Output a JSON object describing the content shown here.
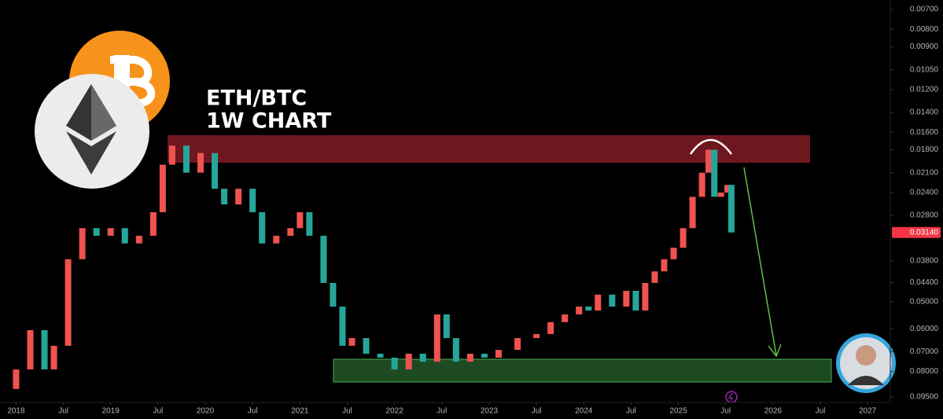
{
  "chart_data": {
    "type": "candlestick",
    "title": "ETH/BTC",
    "subtitle": "1W CHART",
    "log_scale": true,
    "inverted": true,
    "grid": false,
    "up_color": "#26a69a",
    "down_color": "#ef5350",
    "x": [
      2018.0,
      2018.15,
      2018.3,
      2018.4,
      2018.55,
      2018.7,
      2018.85,
      2019.0,
      2019.15,
      2019.3,
      2019.45,
      2019.55,
      2019.65,
      2019.8,
      2019.95,
      2020.1,
      2020.2,
      2020.35,
      2020.5,
      2020.6,
      2020.75,
      2020.9,
      2021.0,
      2021.1,
      2021.25,
      2021.35,
      2021.45,
      2021.55,
      2021.7,
      2021.85,
      2022.0,
      2022.15,
      2022.3,
      2022.45,
      2022.55,
      2022.65,
      2022.8,
      2022.95,
      2023.1,
      2023.3,
      2023.5,
      2023.65,
      2023.8,
      2023.95,
      2024.05,
      2024.15,
      2024.3,
      2024.45,
      2024.55,
      2024.65,
      2024.75,
      2024.85,
      2024.95,
      2025.05,
      2025.15,
      2025.25,
      2025.32,
      2025.38,
      2025.45,
      2025.52,
      2025.56
    ],
    "open": [
      0.09,
      0.0789,
      0.0606,
      0.0789,
      0.0673,
      0.0376,
      0.0305,
      0.0321,
      0.0305,
      0.0338,
      0.0321,
      0.0274,
      0.0199,
      0.0175,
      0.021,
      0.0184,
      0.0234,
      0.026,
      0.0234,
      0.0274,
      0.0338,
      0.0321,
      0.0305,
      0.0274,
      0.0321,
      0.0441,
      0.0517,
      0.0673,
      0.0639,
      0.071,
      0.0729,
      0.0789,
      0.071,
      0.0749,
      0.0545,
      0.0639,
      0.0749,
      0.071,
      0.0729,
      0.0692,
      0.0639,
      0.0622,
      0.0574,
      0.0545,
      0.0517,
      0.0531,
      0.0477,
      0.0517,
      0.0465,
      0.0531,
      0.0441,
      0.0408,
      0.0376,
      0.0348,
      0.0305,
      0.0247,
      0.021,
      0.018,
      0.0247,
      0.024,
      0.0228
    ],
    "close": [
      0.0789,
      0.0606,
      0.0789,
      0.0673,
      0.0376,
      0.0305,
      0.0321,
      0.0305,
      0.0338,
      0.0321,
      0.0274,
      0.0199,
      0.0175,
      0.021,
      0.0184,
      0.0234,
      0.026,
      0.0234,
      0.0274,
      0.0338,
      0.0321,
      0.0305,
      0.0274,
      0.0321,
      0.0441,
      0.0517,
      0.0673,
      0.0639,
      0.071,
      0.0729,
      0.0789,
      0.071,
      0.0749,
      0.0545,
      0.0639,
      0.0749,
      0.071,
      0.0729,
      0.0692,
      0.0639,
      0.0622,
      0.0574,
      0.0545,
      0.0517,
      0.0531,
      0.0477,
      0.0517,
      0.0465,
      0.0531,
      0.0441,
      0.0408,
      0.0376,
      0.0348,
      0.0305,
      0.0247,
      0.021,
      0.018,
      0.0247,
      0.024,
      0.0228,
      0.0314
    ],
    "xlim": [
      2017.83,
      2027.24
    ],
    "xticks": [
      2018,
      {
        "value": 2018.5,
        "label": "Jul"
      },
      2019,
      {
        "value": 2019.5,
        "label": "Jul"
      },
      2020,
      {
        "value": 2020.5,
        "label": "Jul"
      },
      2021,
      {
        "value": 2021.5,
        "label": "Jul"
      },
      2022,
      {
        "value": 2022.5,
        "label": "Jul"
      },
      2023,
      {
        "value": 2023.5,
        "label": "Jul"
      },
      2024,
      {
        "value": 2024.5,
        "label": "Jul"
      },
      2025,
      {
        "value": 2025.5,
        "label": "Jul"
      },
      2026,
      {
        "value": 2026.5,
        "label": "Jul"
      },
      2027
    ],
    "ylim": [
      0.007,
      0.095
    ],
    "yticks": [
      {
        "value": 0.007,
        "label": "0.00700"
      },
      {
        "value": 0.008,
        "label": "0.00800"
      },
      {
        "value": 0.009,
        "label": "0.00900"
      },
      {
        "value": 0.0105,
        "label": "0.01050"
      },
      {
        "value": 0.012,
        "label": "0.01200"
      },
      {
        "value": 0.014,
        "label": "0.01400"
      },
      {
        "value": 0.016,
        "label": "0.01600"
      },
      {
        "value": 0.018,
        "label": "0.01800"
      },
      {
        "value": 0.021,
        "label": "0.02100"
      },
      {
        "value": 0.024,
        "label": "0.02400"
      },
      {
        "value": 0.028,
        "label": "0.02800"
      },
      {
        "value": 0.038,
        "label": "0.03800"
      },
      {
        "value": 0.044,
        "label": "0.04400"
      },
      {
        "value": 0.05,
        "label": "0.05000"
      },
      {
        "value": 0.06,
        "label": "0.06000"
      },
      {
        "value": 0.07,
        "label": "0.07000"
      },
      {
        "value": 0.08,
        "label": "0.08000"
      },
      {
        "value": 0.095,
        "label": "0.09500"
      }
    ],
    "last_price": {
      "value": 0.0314,
      "label": "0.03140"
    }
  }
}
